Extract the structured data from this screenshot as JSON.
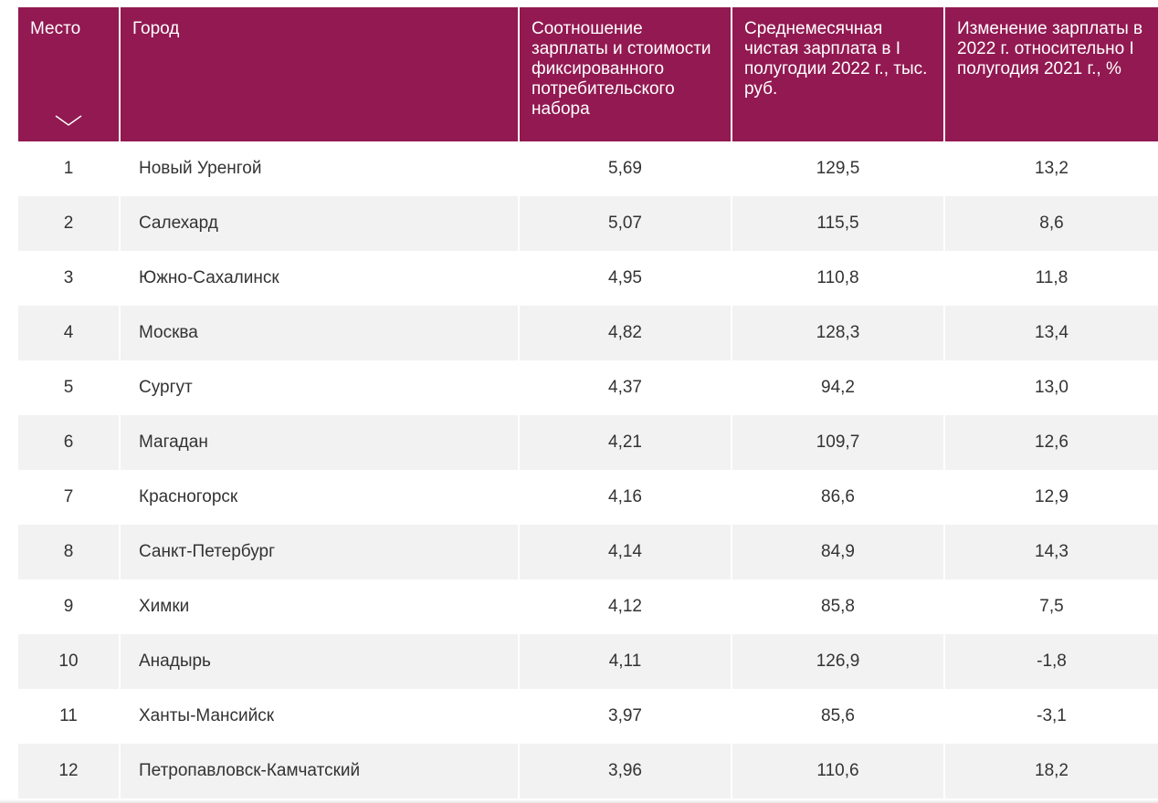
{
  "table": {
    "headers": [
      "Место",
      "Город",
      "Соотношение зарплаты и стоимости фиксированного потребительского набора",
      "Среднемесячная чистая зарплата в I полугодии 2022 г., тыс. руб.",
      "Изменение зарплаты в 2022 г. относительно I полугодия 2021 г., %"
    ],
    "rows": [
      {
        "place": "1",
        "city": "Новый Уренгой",
        "ratio": "5,69",
        "salary": "129,5",
        "change": "13,2"
      },
      {
        "place": "2",
        "city": "Салехард",
        "ratio": "5,07",
        "salary": "115,5",
        "change": "8,6"
      },
      {
        "place": "3",
        "city": "Южно-Сахалинск",
        "ratio": "4,95",
        "salary": "110,8",
        "change": "11,8"
      },
      {
        "place": "4",
        "city": "Москва",
        "ratio": "4,82",
        "salary": "128,3",
        "change": "13,4"
      },
      {
        "place": "5",
        "city": "Сургут",
        "ratio": "4,37",
        "salary": "94,2",
        "change": "13,0"
      },
      {
        "place": "6",
        "city": "Магадан",
        "ratio": "4,21",
        "salary": "109,7",
        "change": "12,6"
      },
      {
        "place": "7",
        "city": "Красногорск",
        "ratio": "4,16",
        "salary": "86,6",
        "change": "12,9"
      },
      {
        "place": "8",
        "city": "Санкт-Петербург",
        "ratio": "4,14",
        "salary": "84,9",
        "change": "14,3"
      },
      {
        "place": "9",
        "city": "Химки",
        "ratio": "4,12",
        "salary": "85,8",
        "change": "7,5"
      },
      {
        "place": "10",
        "city": "Анадырь",
        "ratio": "4,11",
        "salary": "126,9",
        "change": "-1,8"
      },
      {
        "place": "11",
        "city": "Ханты-Мансийск",
        "ratio": "3,97",
        "salary": "85,6",
        "change": "-3,1"
      },
      {
        "place": "12",
        "city": "Петропавловск-Камчатский",
        "ratio": "3,96",
        "salary": "110,6",
        "change": "18,2"
      }
    ]
  },
  "icons": {
    "sort": "chevron-down-icon"
  },
  "colors": {
    "header_bg": "#921951",
    "header_text": "#ffffff",
    "row_alt_bg": "#f2f2f2",
    "cell_text": "#333333"
  }
}
